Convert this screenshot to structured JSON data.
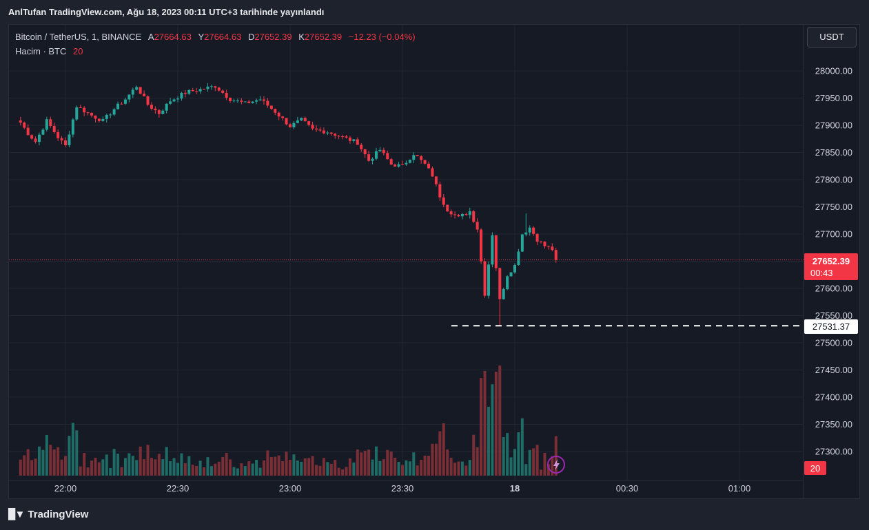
{
  "credit": "AnlTufan TradingView.com, Ağu 18, 2023 00:11 UTC+3 tarihinde yayınlandı",
  "legend": {
    "symbol": "Bitcoin / TetherUS, 1, BINANCE",
    "o_label": "A",
    "o": "27664.63",
    "h_label": "Y",
    "h": "27664.63",
    "l_label": "D",
    "l": "27652.39",
    "c_label": "K",
    "c": "27652.39",
    "change": "−12.23 (−0.04%)",
    "volume_label": "Hacim · BTC",
    "volume_value": "20"
  },
  "currency_button": "USDT",
  "brand": "TradingView",
  "colors": {
    "up": "#26a69a",
    "down": "#f23645",
    "vol_up": "#1f6b66",
    "vol_down": "#7a2e35",
    "price_badge": "#f23645",
    "grid": "#232733"
  },
  "chart_data": {
    "type": "candlestick",
    "symbol": "BTCUSDT",
    "interval": "1",
    "y_ticks": [
      "28000.00",
      "27950.00",
      "27900.00",
      "27850.00",
      "27800.00",
      "27750.00",
      "27700.00",
      "27650.00",
      "27600.00",
      "27550.00",
      "27500.00",
      "27450.00",
      "27400.00",
      "27350.00",
      "27300.00"
    ],
    "x_ticks": [
      "22:00",
      "22:30",
      "23:00",
      "23:30",
      "18",
      "00:30",
      "01:00"
    ],
    "last_price": "27652.39",
    "countdown": "00:43",
    "marked_low": "27531.37",
    "volume_last": "20",
    "anchors": [
      [
        "21:48",
        27905
      ],
      [
        "21:50",
        27885
      ],
      [
        "21:52",
        27870
      ],
      [
        "21:55",
        27908
      ],
      [
        "21:58",
        27878
      ],
      [
        "22:00",
        27862
      ],
      [
        "22:03",
        27935
      ],
      [
        "22:07",
        27918
      ],
      [
        "22:10",
        27908
      ],
      [
        "22:13",
        27930
      ],
      [
        "22:16",
        27948
      ],
      [
        "22:19",
        27972
      ],
      [
        "22:22",
        27938
      ],
      [
        "22:25",
        27922
      ],
      [
        "22:28",
        27945
      ],
      [
        "22:32",
        27960
      ],
      [
        "22:36",
        27966
      ],
      [
        "22:40",
        27972
      ],
      [
        "22:44",
        27948
      ],
      [
        "22:48",
        27940
      ],
      [
        "22:52",
        27948
      ],
      [
        "22:56",
        27925
      ],
      [
        "23:00",
        27898
      ],
      [
        "23:03",
        27910
      ],
      [
        "23:06",
        27892
      ],
      [
        "23:10",
        27888
      ],
      [
        "23:14",
        27878
      ],
      [
        "23:18",
        27868
      ],
      [
        "23:21",
        27835
      ],
      [
        "23:24",
        27855
      ],
      [
        "23:27",
        27828
      ],
      [
        "23:30",
        27825
      ],
      [
        "23:33",
        27848
      ],
      [
        "23:36",
        27828
      ],
      [
        "23:38",
        27808
      ],
      [
        "23:40",
        27770
      ],
      [
        "23:42",
        27745
      ],
      [
        "23:45",
        27730
      ],
      [
        "23:48",
        27742
      ],
      [
        "23:50",
        27710
      ],
      [
        "23:52",
        27590
      ],
      [
        "23:54",
        27700
      ],
      [
        "23:56",
        27578
      ],
      [
        "23:58",
        27625
      ],
      [
        "00:00",
        27642
      ],
      [
        "00:02",
        27700
      ],
      [
        "00:04",
        27712
      ],
      [
        "00:06",
        27690
      ],
      [
        "00:08",
        27678
      ],
      [
        "00:10",
        27672
      ],
      [
        "00:11",
        27652.39
      ]
    ],
    "wick_extremes": [
      [
        "23:56",
        27531.37
      ],
      [
        "00:03",
        27738
      ]
    ]
  }
}
